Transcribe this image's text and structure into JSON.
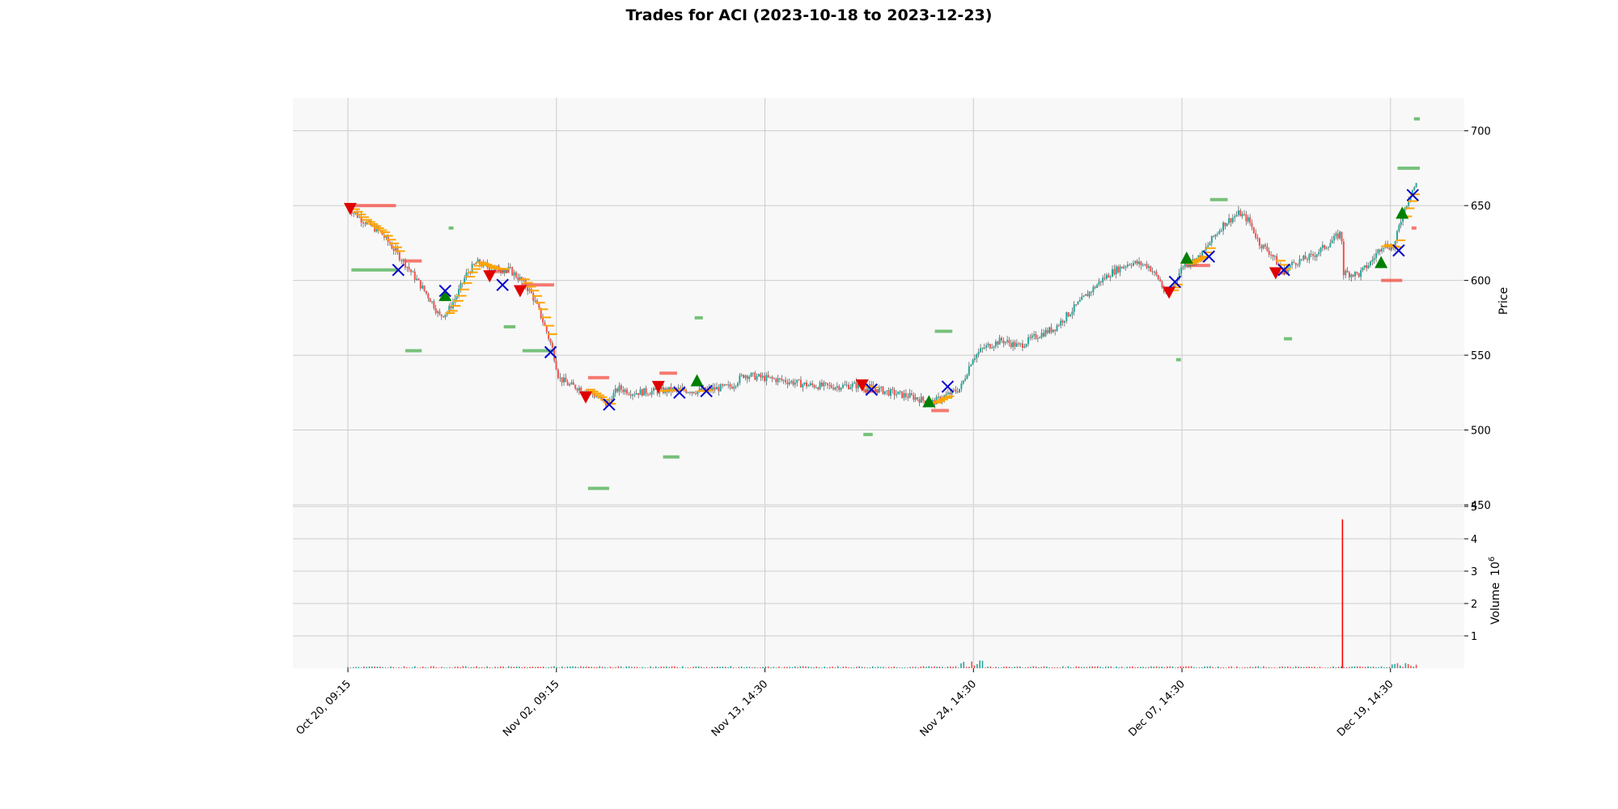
{
  "chart_data": {
    "type": "candlestick",
    "title": "Trades for ACI (2023-10-18 to 2023-12-23)",
    "panels": {
      "price": {
        "ylabel": "Price",
        "ylim": [
          450,
          722
        ],
        "yticks": [
          450,
          500,
          550,
          600,
          650,
          700
        ],
        "grid": true
      },
      "volume": {
        "ylabel": "Volume",
        "ylabel_exponent": "10",
        "ylabel_exponent_power": "6",
        "ylim": [
          0,
          5
        ],
        "yticks": [
          1,
          2,
          3,
          4,
          5
        ],
        "grid": true
      }
    },
    "x": {
      "range": [
        0,
        100
      ],
      "ticks": [
        {
          "x": 4.7,
          "label": "Oct 20, 09:15"
        },
        {
          "x": 22.5,
          "label": "Nov 02, 09:15"
        },
        {
          "x": 40.3,
          "label": "Nov 13, 14:30"
        },
        {
          "x": 58.1,
          "label": "Nov 24, 14:30"
        },
        {
          "x": 75.9,
          "label": "Dec 07, 14:30"
        },
        {
          "x": 93.7,
          "label": "Dec 19, 14:30"
        }
      ]
    },
    "price_path": [
      [
        4.7,
        649
      ],
      [
        6,
        640
      ],
      [
        7.5,
        632
      ],
      [
        8.7,
        620
      ],
      [
        9.7,
        610
      ],
      [
        10.6,
        600
      ],
      [
        11.5,
        590
      ],
      [
        12,
        584
      ],
      [
        12.5,
        576
      ],
      [
        13.2,
        579
      ],
      [
        14,
        590
      ],
      [
        14.8,
        604
      ],
      [
        15.7,
        612
      ],
      [
        17,
        608
      ],
      [
        18.5,
        607
      ],
      [
        19.5,
        600
      ],
      [
        20.3,
        592
      ],
      [
        21,
        580
      ],
      [
        21.7,
        565
      ],
      [
        22.2,
        553
      ],
      [
        22.7,
        535
      ],
      [
        23.6,
        530
      ],
      [
        25,
        527
      ],
      [
        26,
        522
      ],
      [
        26.7,
        517
      ],
      [
        27.8,
        528
      ],
      [
        29,
        525
      ],
      [
        31,
        526
      ],
      [
        33,
        527
      ],
      [
        34.5,
        526
      ],
      [
        35.5,
        527
      ],
      [
        37.4,
        529
      ],
      [
        38.5,
        537
      ],
      [
        40,
        535
      ],
      [
        42,
        533
      ],
      [
        44,
        530
      ],
      [
        46,
        529
      ],
      [
        48,
        530
      ],
      [
        49.5,
        528
      ],
      [
        51,
        525
      ],
      [
        53,
        522
      ],
      [
        54.5,
        518
      ],
      [
        56,
        524
      ],
      [
        57,
        528
      ],
      [
        58,
        548
      ],
      [
        59,
        555
      ],
      [
        60.5,
        560
      ],
      [
        62,
        556
      ],
      [
        63.5,
        563
      ],
      [
        65,
        568
      ],
      [
        66.5,
        580
      ],
      [
        68,
        592
      ],
      [
        69,
        600
      ],
      [
        70,
        606
      ],
      [
        71.5,
        612
      ],
      [
        73,
        610
      ],
      [
        74,
        600
      ],
      [
        74.5,
        590
      ],
      [
        75.2,
        598
      ],
      [
        76,
        610
      ],
      [
        77.5,
        616
      ],
      [
        78.5,
        628
      ],
      [
        79.5,
        638
      ],
      [
        80.8,
        645
      ],
      [
        81.6,
        640
      ],
      [
        82.5,
        625
      ],
      [
        83.5,
        618
      ],
      [
        84.5,
        606
      ],
      [
        85.5,
        612
      ],
      [
        87,
        616
      ],
      [
        88.5,
        625
      ],
      [
        89.5,
        632
      ],
      [
        89.7,
        605
      ],
      [
        91,
        604
      ],
      [
        92,
        612
      ],
      [
        93,
        624
      ],
      [
        94,
        622
      ],
      [
        94.5,
        638
      ],
      [
        95,
        650
      ],
      [
        95.5,
        660
      ],
      [
        95.9,
        664
      ]
    ],
    "volume_spike": {
      "x": 89.6,
      "value": 4.6
    },
    "trade_markers": {
      "sell_entry": [
        [
          4.9,
          648
        ],
        [
          16.8,
          603
        ],
        [
          19.4,
          593
        ],
        [
          25,
          522
        ],
        [
          31.2,
          529
        ],
        [
          48.6,
          530
        ],
        [
          74.8,
          592
        ],
        [
          83.9,
          605
        ]
      ],
      "buy_entry": [
        [
          13,
          590
        ],
        [
          34.5,
          533
        ],
        [
          54.3,
          519
        ],
        [
          76.3,
          615
        ],
        [
          92.9,
          612
        ],
        [
          94.7,
          645
        ]
      ],
      "exit": [
        [
          9,
          607
        ],
        [
          13,
          593
        ],
        [
          17.9,
          597
        ],
        [
          22,
          552
        ],
        [
          27,
          517
        ],
        [
          33,
          525
        ],
        [
          35.3,
          526
        ],
        [
          49.4,
          527
        ],
        [
          55.9,
          529
        ],
        [
          75.3,
          599
        ],
        [
          78.2,
          616
        ],
        [
          84.6,
          607
        ],
        [
          94.4,
          620
        ],
        [
          95.6,
          657
        ]
      ]
    },
    "levels": {
      "take_profit": [
        [
          5,
          9,
          607
        ],
        [
          9.6,
          11,
          553
        ],
        [
          13.3,
          13.4,
          635
        ],
        [
          18,
          19,
          569
        ],
        [
          19.6,
          22.3,
          553
        ],
        [
          25.2,
          27,
          461
        ],
        [
          31.6,
          33,
          482
        ],
        [
          34.3,
          35,
          575
        ],
        [
          48.7,
          49.5,
          497
        ],
        [
          54.8,
          56.3,
          566
        ],
        [
          75.4,
          75.6,
          547
        ],
        [
          78.3,
          79.8,
          654
        ],
        [
          84.6,
          85.3,
          561
        ],
        [
          94.3,
          96.2,
          675
        ],
        [
          95.7,
          96.2,
          708
        ]
      ],
      "stop_loss": [
        [
          5,
          8.8,
          650
        ],
        [
          9.5,
          11,
          613
        ],
        [
          16.9,
          18.5,
          606
        ],
        [
          19.5,
          22.3,
          597
        ],
        [
          25.2,
          27,
          535
        ],
        [
          31.3,
          32.8,
          538
        ],
        [
          48.7,
          50,
          526
        ],
        [
          54.5,
          56,
          513
        ],
        [
          76.3,
          78.3,
          610
        ],
        [
          84.2,
          85,
          605
        ],
        [
          92.9,
          94.7,
          600
        ],
        [
          95.5,
          95.9,
          635
        ]
      ]
    },
    "colors": {
      "up": "#26a69a",
      "down": "#ef5350",
      "trail": "#ffa500",
      "sell_marker": "#e00000",
      "buy_marker": "#008000",
      "exit_marker": "#0000cc",
      "take_profit_level": "#4caf50",
      "stop_loss_level": "#f44336",
      "volume_spike": "#ff0000",
      "panel_bg": "#f8f8f8",
      "grid": "#cccccc"
    }
  }
}
